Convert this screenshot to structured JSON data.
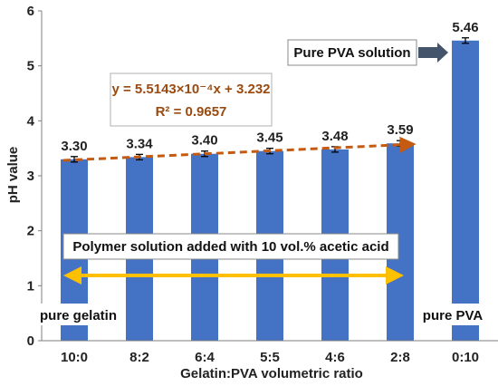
{
  "chart_data": {
    "type": "bar",
    "categories": [
      "10:0",
      "8:2",
      "6:4",
      "5:5",
      "4:6",
      "2:8",
      "0:10"
    ],
    "values": [
      3.3,
      3.34,
      3.4,
      3.45,
      3.48,
      3.59,
      5.46
    ],
    "value_labels": [
      "3.30",
      "3.34",
      "3.40",
      "3.45",
      "3.48",
      "3.59",
      "5.46"
    ],
    "xlabel": "Gelatin:PVA volumetric ratio",
    "ylabel": "pH value",
    "ylim": [
      0,
      6
    ],
    "yticks": [
      "0",
      "1",
      "2",
      "3",
      "4",
      "5",
      "6"
    ],
    "grid": false,
    "bar_color": "#4472c4",
    "trendline": {
      "style": "dashed",
      "color": "#c55a11",
      "equation": "y = 5.5143×10⁻⁴x + 3.232",
      "r_squared": "R² = 0.9657",
      "from_value": 3.28,
      "to_value": 3.575
    },
    "annotations": {
      "pure_pva_solution": "Pure PVA solution",
      "polymer_note": "Polymer solution added with 10 vol.% acetic acid",
      "pure_gelatin": "pure gelatin",
      "pure_pva": "pure PVA"
    },
    "arrow_color": "#ffc000"
  }
}
